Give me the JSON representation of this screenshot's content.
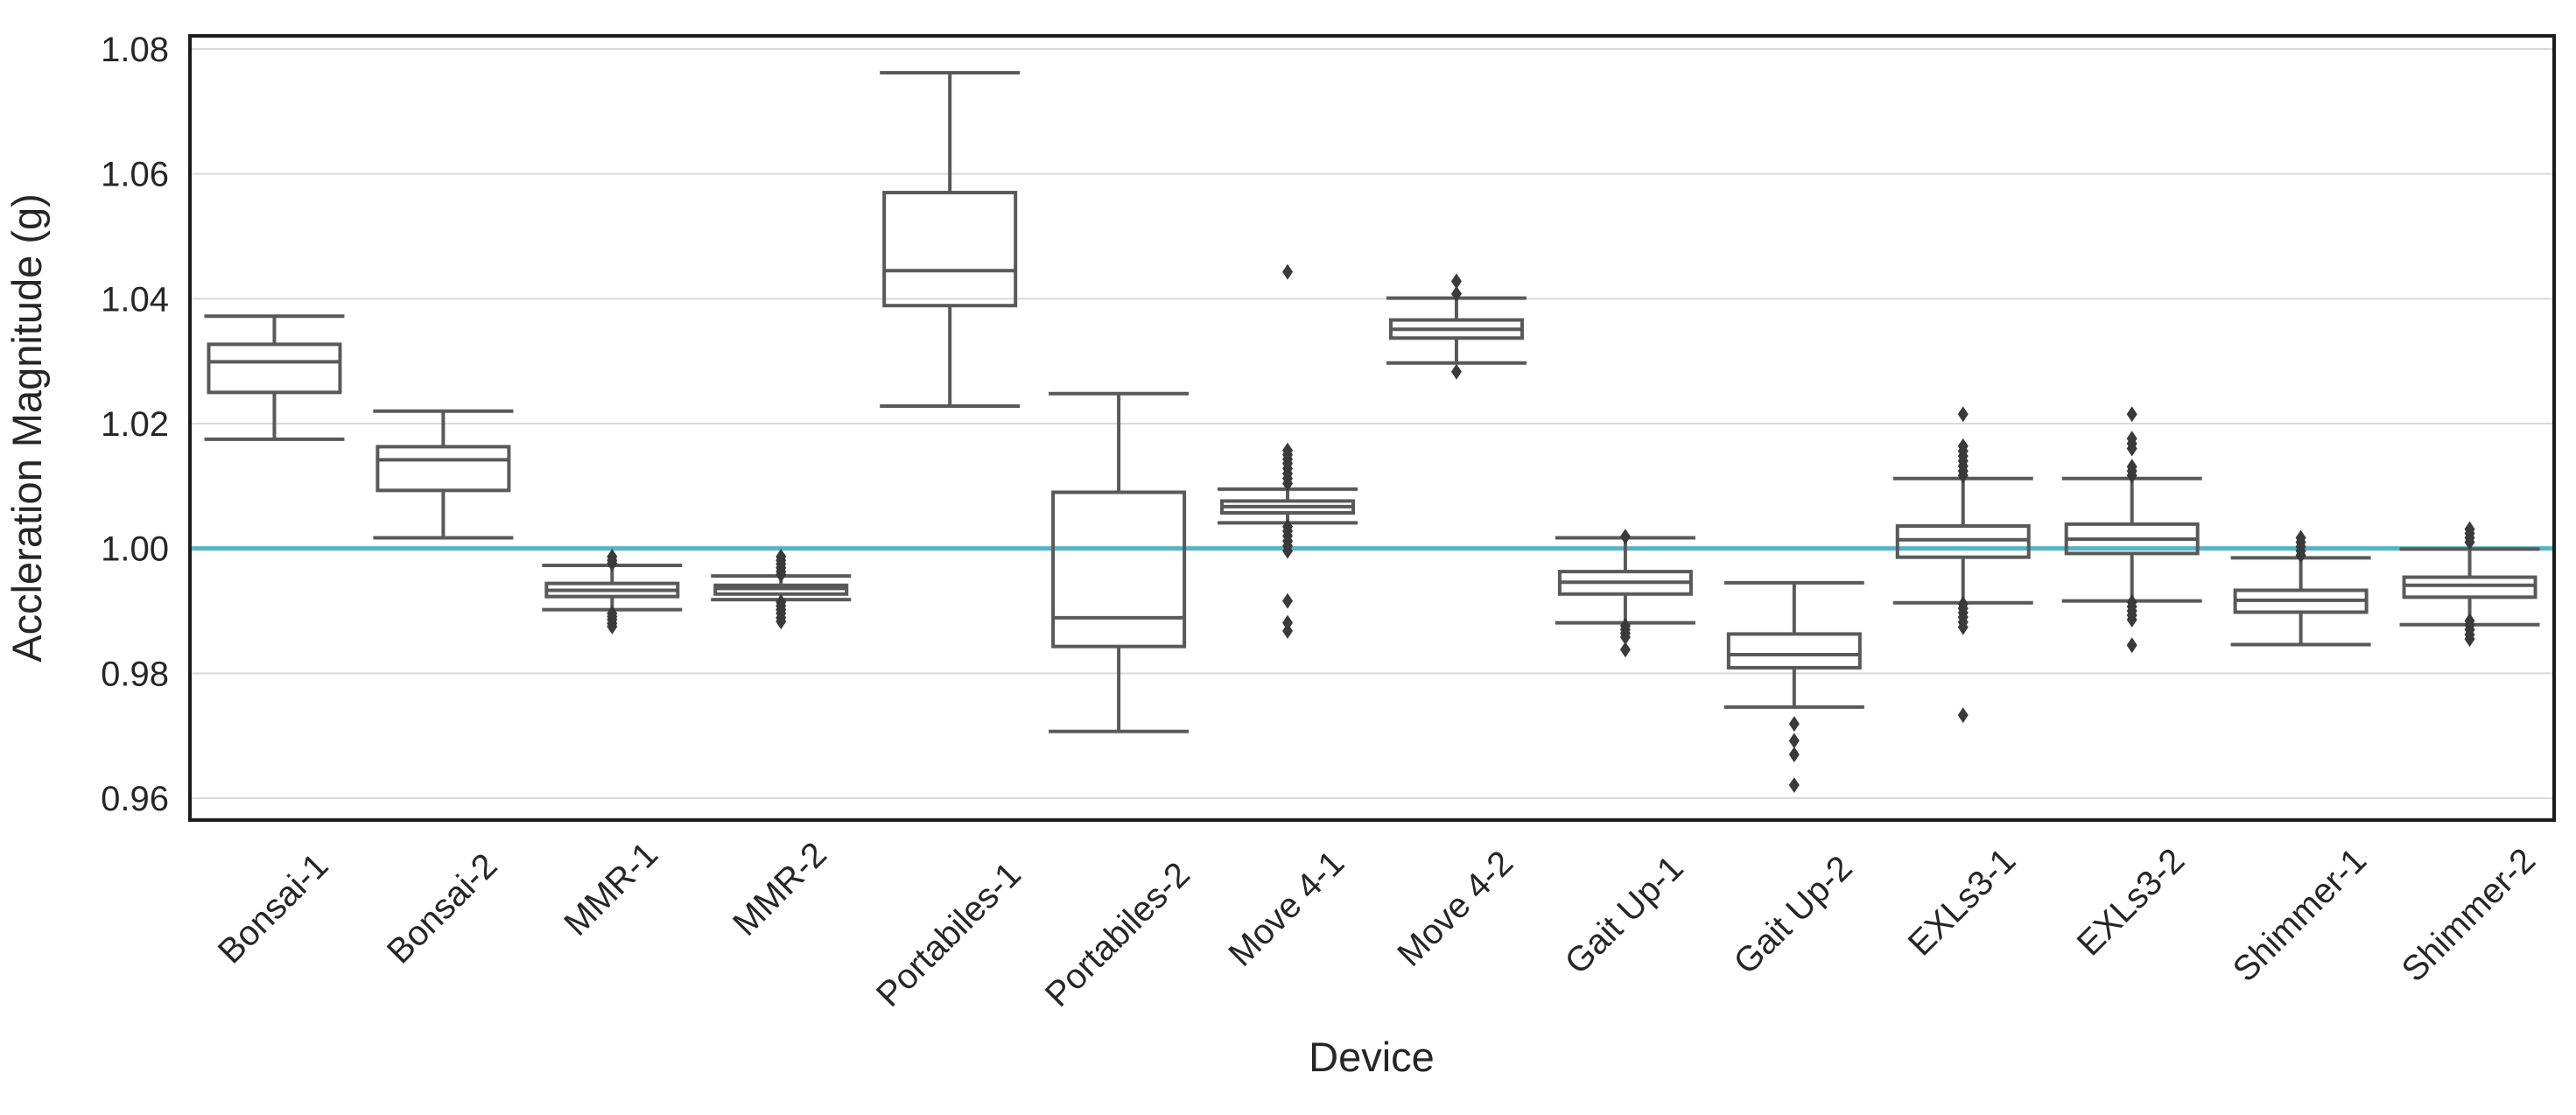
{
  "styles": {
    "background": "#ffffff",
    "box_color": "#595959",
    "outlier_color": "#3a3a3a",
    "grid_color": "#d9d9d9",
    "spine_color": "#1c1c1c",
    "text_color": "#262626",
    "reference_color": "#56b4c4"
  },
  "chart_data": {
    "type": "boxplot",
    "title": "",
    "xlabel": "Device",
    "ylabel": "Accleration Magnitude (g)",
    "ylim": [
      0.9565,
      1.0821
    ],
    "yticks": [
      0.96,
      0.98,
      1.0,
      1.02,
      1.04,
      1.06,
      1.08
    ],
    "grid": true,
    "legend": "none",
    "reference_line_y": 1.0,
    "categories": [
      "Bonsai-1",
      "Bonsai-2",
      "MMR-1",
      "MMR-2",
      "Portabiles-1",
      "Portabiles-2",
      "Move 4-1",
      "Move 4-2",
      "Gait Up-1",
      "Gait Up-2",
      "EXLs3-1",
      "EXLs3-2",
      "Shimmer-1",
      "Shimmer-2"
    ],
    "series": [
      {
        "name": "Bonsai-1",
        "whislo": 1.0175,
        "q1": 1.025,
        "med": 1.0299,
        "q3": 1.0327,
        "whishi": 1.0372,
        "outliers": []
      },
      {
        "name": "Bonsai-2",
        "whislo": 1.0017,
        "q1": 1.0093,
        "med": 1.0142,
        "q3": 1.0163,
        "whishi": 1.022,
        "outliers": []
      },
      {
        "name": "MMR-1",
        "whislo": 0.9902,
        "q1": 0.9923,
        "med": 0.9933,
        "q3": 0.9944,
        "whishi": 0.9973,
        "outliers": [
          0.9987,
          0.9981,
          0.9976,
          0.9896,
          0.9891,
          0.9886,
          0.988,
          0.9875
        ]
      },
      {
        "name": "MMR-2",
        "whislo": 0.9918,
        "q1": 0.9927,
        "med": 0.9936,
        "q3": 0.9941,
        "whishi": 0.9956,
        "outliers": [
          0.9987,
          0.9981,
          0.9975,
          0.9969,
          0.9963,
          0.9958,
          0.9914,
          0.9908,
          0.9902,
          0.9896,
          0.9889,
          0.9883
        ]
      },
      {
        "name": "Portabiles-1",
        "whislo": 1.0228,
        "q1": 1.0389,
        "med": 1.0445,
        "q3": 1.057,
        "whishi": 1.0762,
        "outliers": []
      },
      {
        "name": "Portabiles-2",
        "whislo": 0.9707,
        "q1": 0.9843,
        "med": 0.9889,
        "q3": 1.009,
        "whishi": 1.0248,
        "outliers": []
      },
      {
        "name": "Move 4-1",
        "whislo": 1.0041,
        "q1": 1.0057,
        "med": 1.0067,
        "q3": 1.0076,
        "whishi": 1.0095,
        "outliers": [
          1.0443,
          1.0157,
          1.015,
          1.0143,
          1.0136,
          1.0128,
          1.012,
          1.0112,
          1.0104,
          1.0035,
          1.0028,
          1.002,
          1.0012,
          1.0004,
          0.9996,
          0.9916,
          0.9881,
          0.9868
        ]
      },
      {
        "name": "Move 4-2",
        "whislo": 1.0297,
        "q1": 1.0337,
        "med": 1.0351,
        "q3": 1.0366,
        "whishi": 1.0401,
        "outliers": [
          1.0428,
          1.0408,
          1.0283
        ]
      },
      {
        "name": "Gait Up-1",
        "whislo": 0.9881,
        "q1": 0.9927,
        "med": 0.9946,
        "q3": 0.9963,
        "whishi": 1.0017,
        "outliers": [
          1.0019,
          0.9876,
          0.987,
          0.9864,
          0.9858,
          0.9838
        ]
      },
      {
        "name": "Gait Up-2",
        "whislo": 0.9746,
        "q1": 0.9809,
        "med": 0.983,
        "q3": 0.9863,
        "whishi": 0.9945,
        "outliers": [
          0.9719,
          0.9692,
          0.967,
          0.9621
        ]
      },
      {
        "name": "EXLs3-1",
        "whislo": 0.9913,
        "q1": 0.9986,
        "med": 1.0014,
        "q3": 1.0036,
        "whishi": 1.0112,
        "outliers": [
          1.0215,
          1.0164,
          1.0156,
          1.0148,
          1.014,
          1.0132,
          1.0124,
          1.0117,
          0.9911,
          0.9904,
          0.9897,
          0.989,
          0.9882,
          0.9874,
          0.9733
        ]
      },
      {
        "name": "EXLs3-2",
        "whislo": 0.9916,
        "q1": 0.9992,
        "med": 1.0015,
        "q3": 1.0039,
        "whishi": 1.0112,
        "outliers": [
          1.0215,
          1.0176,
          1.0168,
          1.016,
          1.0131,
          1.0124,
          1.0117,
          0.9914,
          0.9907,
          0.99,
          0.9893,
          0.9886,
          0.9845
        ]
      },
      {
        "name": "Shimmer-1",
        "whislo": 0.9846,
        "q1": 0.9898,
        "med": 0.9917,
        "q3": 0.9933,
        "whishi": 0.9985,
        "outliers": [
          1.0017,
          1.001,
          1.0003,
          0.9996,
          0.9989
        ]
      },
      {
        "name": "Shimmer-2",
        "whislo": 0.9878,
        "q1": 0.9922,
        "med": 0.9941,
        "q3": 0.9954,
        "whishi": 0.9999,
        "outliers": [
          1.0031,
          1.0024,
          1.0017,
          1.001,
          0.9884,
          0.9877,
          0.987,
          0.9862,
          0.9855
        ]
      }
    ]
  }
}
